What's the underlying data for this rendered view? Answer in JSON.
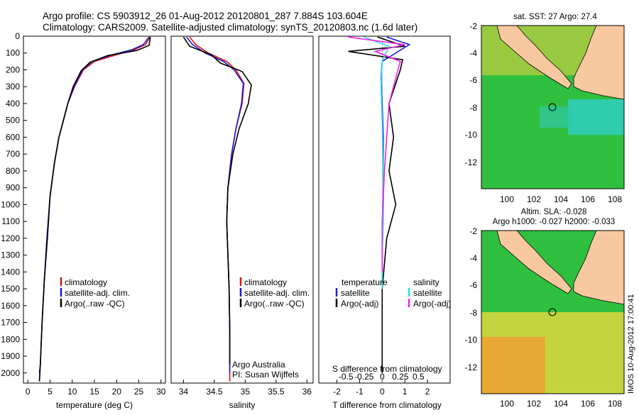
{
  "header": {
    "line1": "Argo profile: CS 5903912_26 01-Aug-2012 20120801_287 7.884S 103.604E",
    "line2": "Climatology: CARS2009. Satellite-adjusted climatology: synTS_20120803.nc (1.6d later)"
  },
  "colors": {
    "climatology": "#e01010",
    "satellite": "#1a1ae0",
    "argo": "#000000",
    "satellite_salinity": "#22e0f0",
    "argo_salinity": "#f020f0",
    "land": "#f8c8a0",
    "sea": "#30c040",
    "ocean_fill_alt": "#f0c030"
  },
  "chart_data": [
    {
      "id": "temperature",
      "type": "line",
      "xlabel": "temperature (deg C)",
      "ylabel": "",
      "xlim": [
        -1,
        31
      ],
      "ylim": [
        2060,
        0
      ],
      "xticks": [
        0,
        5,
        10,
        15,
        20,
        25,
        30
      ],
      "yticks": [
        0,
        100,
        200,
        300,
        400,
        500,
        600,
        700,
        800,
        900,
        1000,
        1100,
        1200,
        1300,
        1400,
        1500,
        1600,
        1700,
        1800,
        1900,
        2000
      ],
      "legend": [
        "climatology",
        "satellite-adj. clim.",
        "Argo(..raw -QC)"
      ],
      "series": [
        {
          "name": "climatology",
          "color": "#e01010",
          "x": [
            27.5,
            26.5,
            24,
            20,
            15,
            12.5,
            10.5,
            9,
            8,
            7,
            6,
            5,
            4.3,
            3.7,
            3.2,
            2.8,
            2.6
          ],
          "y": [
            5,
            50,
            80,
            110,
            150,
            200,
            300,
            400,
            500,
            600,
            750,
            950,
            1200,
            1450,
            1700,
            1950,
            2050
          ]
        },
        {
          "name": "satellite-adj. clim.",
          "color": "#1a1ae0",
          "x": [
            27.3,
            26,
            23.5,
            19,
            14.5,
            12.3,
            10.4,
            9,
            8,
            7,
            6,
            5,
            4.3,
            3.7,
            3.2,
            2.8,
            2.6
          ],
          "y": [
            5,
            50,
            80,
            110,
            150,
            200,
            300,
            400,
            500,
            600,
            750,
            950,
            1200,
            1450,
            1700,
            1950,
            2000
          ]
        },
        {
          "name": "Argo(..raw -QC)",
          "color": "#000000",
          "x": [
            27.6,
            27.3,
            24.5,
            18,
            14,
            12,
            10.2,
            9,
            8,
            7,
            6,
            5,
            4.4,
            3.7,
            3.2,
            2.8,
            2.6
          ],
          "y": [
            5,
            55,
            85,
            115,
            155,
            205,
            300,
            400,
            500,
            600,
            750,
            950,
            1200,
            1450,
            1700,
            1950,
            2050
          ]
        }
      ]
    },
    {
      "id": "salinity",
      "type": "line",
      "xlabel": "salinity",
      "xlim": [
        33.8,
        36.1
      ],
      "ylim": [
        2060,
        0
      ],
      "xticks": [
        34,
        34.5,
        35,
        35.5,
        36
      ],
      "legend": [
        "climatology",
        "satellite-adj. clim.",
        "Argo(..raw -QC)"
      ],
      "annotations": [
        "Argo Australia",
        "PI: Susan Wijffels"
      ],
      "series": [
        {
          "name": "climatology",
          "color": "#e01010",
          "x": [
            34.1,
            34.2,
            34.4,
            34.7,
            34.85,
            34.98,
            34.95,
            34.85,
            34.78,
            34.72,
            34.7,
            34.72,
            34.74,
            34.75,
            34.75
          ],
          "y": [
            5,
            50,
            100,
            150,
            200,
            280,
            400,
            550,
            700,
            900,
            1100,
            1300,
            1500,
            1750,
            2050
          ]
        },
        {
          "name": "satellite-adj. clim.",
          "color": "#1a1ae0",
          "x": [
            34.05,
            34.15,
            34.35,
            34.65,
            34.82,
            34.97,
            34.94,
            34.85,
            34.78,
            34.72,
            34.7,
            34.72,
            34.74,
            34.75,
            34.75
          ],
          "y": [
            5,
            50,
            100,
            150,
            200,
            280,
            400,
            550,
            700,
            900,
            1100,
            1300,
            1500,
            1750,
            2000
          ]
        },
        {
          "name": "Argo(..raw -QC)",
          "color": "#000000",
          "x": [
            34.0,
            34.1,
            34.45,
            34.6,
            34.95,
            35.1,
            35.05,
            34.9,
            34.8,
            34.72,
            34.7,
            34.72,
            34.74,
            34.75,
            34.75
          ],
          "y": [
            5,
            60,
            110,
            160,
            210,
            290,
            400,
            550,
            700,
            900,
            1100,
            1300,
            1500,
            1750,
            1950
          ]
        }
      ]
    },
    {
      "id": "difference",
      "type": "line",
      "xlabel": "T difference from climatology",
      "top_axis_label": "S difference from climatology",
      "xlim": [
        -2.8,
        3.0
      ],
      "ylim": [
        2060,
        0
      ],
      "xticks": [
        -2,
        -1,
        0,
        1,
        2
      ],
      "top_ticks": [
        "-0.5",
        "-0.25",
        "0",
        "0.25",
        "0.5"
      ],
      "legend_headers": [
        "temperature",
        "salinity"
      ],
      "legend": [
        "satellite",
        "Argo(-adj)",
        "satellite",
        "Argo(-adj)"
      ],
      "series": [
        {
          "name": "satellite",
          "color": "#1a1ae0",
          "x": [
            0.2,
            1.2,
            0.6,
            0.0,
            -0.05,
            0.0,
            0.05,
            0.05,
            0.05,
            0.0,
            0.0
          ],
          "y": [
            5,
            50,
            100,
            150,
            250,
            400,
            600,
            800,
            1000,
            1300,
            1500
          ]
        },
        {
          "name": "Argo(-adj)",
          "color": "#000000",
          "x": [
            -0.2,
            1.0,
            -1.5,
            0.9,
            0.8,
            0.3,
            0.5,
            0.3,
            0.6,
            0.2,
            0.0,
            0.0
          ],
          "y": [
            5,
            60,
            90,
            140,
            200,
            400,
            600,
            800,
            1000,
            1200,
            1500,
            2000
          ]
        },
        {
          "name": "satellite",
          "color": "#22e0f0",
          "x": [
            -0.8,
            0.3,
            0.0,
            -0.05,
            0.0,
            0.05,
            0.05,
            0.0,
            0.0
          ],
          "y": [
            5,
            60,
            150,
            300,
            500,
            800,
            1100,
            1300,
            1500
          ]
        },
        {
          "name": "Argo(-adj)",
          "color": "#f020f0",
          "x": [
            -1.5,
            1.0,
            -0.3,
            0.8,
            0.6,
            0.3,
            0.2,
            0.1,
            0.0,
            0.0
          ],
          "y": [
            5,
            50,
            90,
            150,
            250,
            400,
            600,
            800,
            1100,
            1400
          ]
        }
      ]
    }
  ],
  "maps": {
    "top": {
      "title": "sat. SST: 27 Argo: 27.4",
      "xticks": [
        "100",
        "102",
        "104",
        "106",
        "108"
      ],
      "yticks": [
        "-2",
        "-4",
        "-6",
        "-8",
        "-10",
        "-12"
      ],
      "argo_position": {
        "lon": 103.604,
        "lat": -7.884
      }
    },
    "bottom": {
      "title_line1": "Altim. SLA: -0.028",
      "title_line2": "Argo h1000: -0.027 h2000: -0.033",
      "xticks": [
        "100",
        "102",
        "104",
        "106",
        "108"
      ],
      "yticks": [
        "-2",
        "-4",
        "-6",
        "-8",
        "-10",
        "-12"
      ],
      "argo_position": {
        "lon": 103.604,
        "lat": -7.884
      }
    }
  },
  "footer_stamp": "IMOS 10-Aug-2012 17:00:41"
}
